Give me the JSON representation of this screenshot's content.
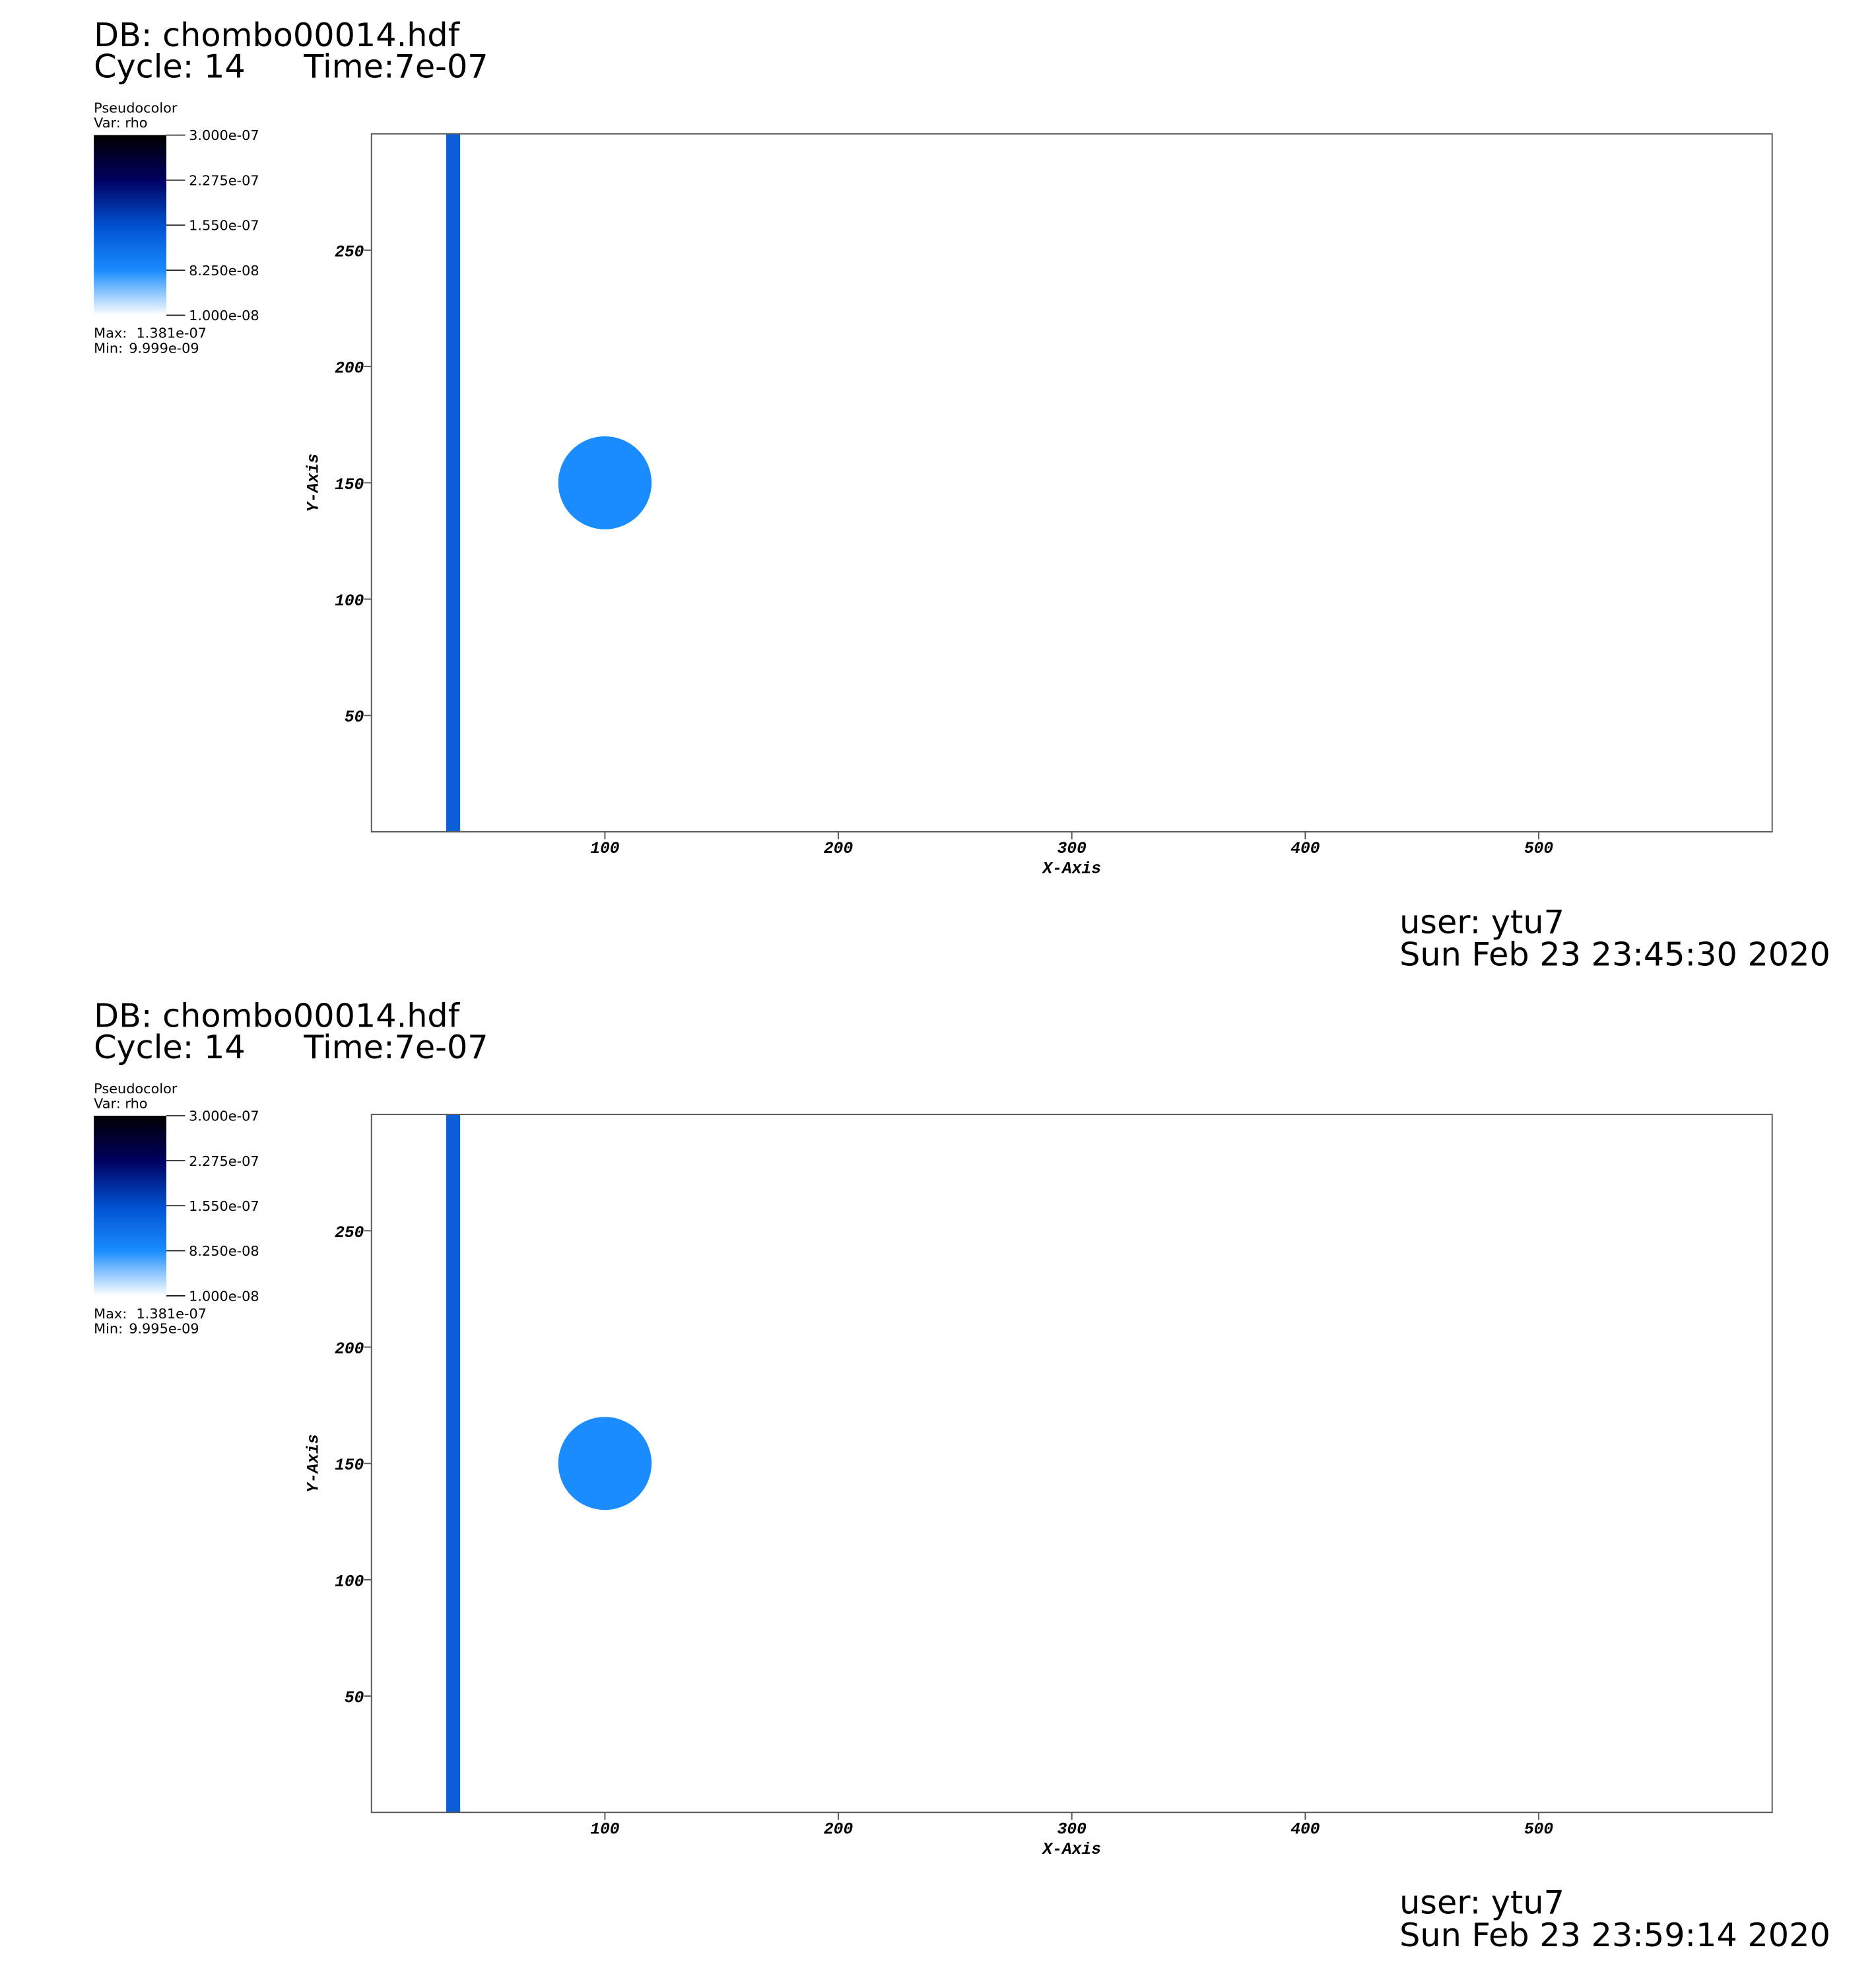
{
  "chart_data": [
    {
      "type": "pseudocolor",
      "database": "DB: chombo00014.hdf",
      "cycle": "Cycle: 14",
      "time": "Time:7e-07",
      "plot_name": "Pseudocolor",
      "variable": "Var: rho",
      "colorbar_lim": [
        1e-08,
        3e-07
      ],
      "colorbar_ticks": [
        {
          "value": 3e-07,
          "label": "3.000e-07"
        },
        {
          "value": 2.275e-07,
          "label": "2.275e-07"
        },
        {
          "value": 1.55e-07,
          "label": "1.550e-07"
        },
        {
          "value": 8.25e-08,
          "label": "8.250e-08"
        },
        {
          "value": 1e-08,
          "label": "1.000e-08"
        }
      ],
      "max_label": "Max:",
      "max": "1.381e-07",
      "min_label": "Min:",
      "min": "9.999e-09",
      "xlabel": "X-Axis",
      "ylabel": "Y-Axis",
      "xlim": [
        0,
        600
      ],
      "ylim": [
        0,
        300
      ],
      "xticks": [
        100,
        200,
        300,
        400,
        500
      ],
      "yticks": [
        50,
        100,
        150,
        200,
        250
      ],
      "band": {
        "x": [
          32,
          38
        ],
        "color": "#0a5fd8"
      },
      "disc": {
        "x": 100,
        "y": 150,
        "r": 20,
        "color": "#1a8cff"
      },
      "user": "user: ytu7",
      "date": "Sun Feb 23 23:45:30 2020"
    },
    {
      "type": "pseudocolor",
      "database": "DB: chombo00014.hdf",
      "cycle": "Cycle: 14",
      "time": "Time:7e-07",
      "plot_name": "Pseudocolor",
      "variable": "Var: rho",
      "colorbar_lim": [
        1e-08,
        3e-07
      ],
      "colorbar_ticks": [
        {
          "value": 3e-07,
          "label": "3.000e-07"
        },
        {
          "value": 2.275e-07,
          "label": "2.275e-07"
        },
        {
          "value": 1.55e-07,
          "label": "1.550e-07"
        },
        {
          "value": 8.25e-08,
          "label": "8.250e-08"
        },
        {
          "value": 1e-08,
          "label": "1.000e-08"
        }
      ],
      "max_label": "Max:",
      "max": "1.381e-07",
      "min_label": "Min:",
      "min": "9.995e-09",
      "xlabel": "X-Axis",
      "ylabel": "Y-Axis",
      "xlim": [
        0,
        600
      ],
      "ylim": [
        0,
        300
      ],
      "xticks": [
        100,
        200,
        300,
        400,
        500
      ],
      "yticks": [
        50,
        100,
        150,
        200,
        250
      ],
      "band": {
        "x": [
          32,
          38
        ],
        "color": "#0a5fd8"
      },
      "disc": {
        "x": 100,
        "y": 150,
        "r": 20,
        "color": "#1a8cff"
      },
      "user": "user: ytu7",
      "date": "Sun Feb 23 23:59:14 2020"
    }
  ]
}
